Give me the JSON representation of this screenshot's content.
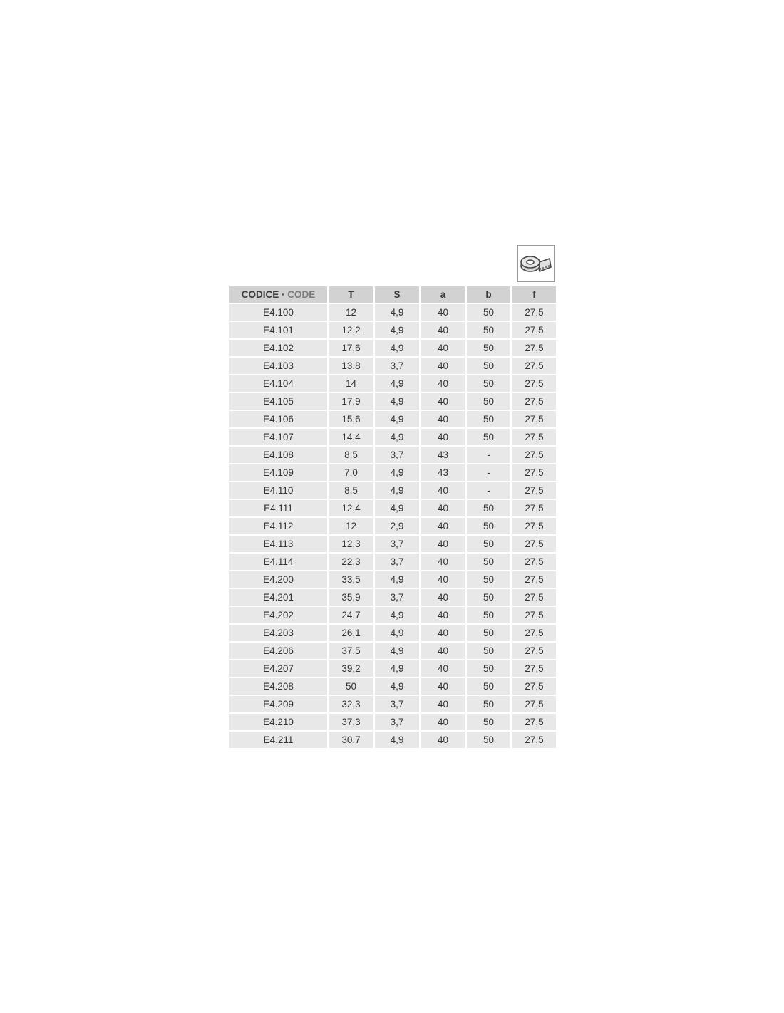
{
  "icon": "measuring-tape-icon",
  "colors": {
    "header_bg": "#d2d2d2",
    "row_bg": "#e8e8e8",
    "code_en": "#7a7a7a"
  },
  "table": {
    "header": {
      "code_it": "CODICE",
      "separator": " · ",
      "code_en": "CODE",
      "columns": [
        "T",
        "S",
        "a",
        "b",
        "f"
      ]
    },
    "rows": [
      [
        "E4.100",
        "12",
        "4,9",
        "40",
        "50",
        "27,5"
      ],
      [
        "E4.101",
        "12,2",
        "4,9",
        "40",
        "50",
        "27,5"
      ],
      [
        "E4.102",
        "17,6",
        "4,9",
        "40",
        "50",
        "27,5"
      ],
      [
        "E4.103",
        "13,8",
        "3,7",
        "40",
        "50",
        "27,5"
      ],
      [
        "E4.104",
        "14",
        "4,9",
        "40",
        "50",
        "27,5"
      ],
      [
        "E4.105",
        "17,9",
        "4,9",
        "40",
        "50",
        "27,5"
      ],
      [
        "E4.106",
        "15,6",
        "4,9",
        "40",
        "50",
        "27,5"
      ],
      [
        "E4.107",
        "14,4",
        "4,9",
        "40",
        "50",
        "27,5"
      ],
      [
        "E4.108",
        "8,5",
        "3,7",
        "43",
        "-",
        "27,5"
      ],
      [
        "E4.109",
        "7,0",
        "4,9",
        "43",
        "-",
        "27,5"
      ],
      [
        "E4.110",
        "8,5",
        "4,9",
        "40",
        "-",
        "27,5"
      ],
      [
        "E4.111",
        "12,4",
        "4,9",
        "40",
        "50",
        "27,5"
      ],
      [
        "E4.112",
        "12",
        "2,9",
        "40",
        "50",
        "27,5"
      ],
      [
        "E4.113",
        "12,3",
        "3,7",
        "40",
        "50",
        "27,5"
      ],
      [
        "E4.114",
        "22,3",
        "3,7",
        "40",
        "50",
        "27,5"
      ],
      [
        "E4.200",
        "33,5",
        "4,9",
        "40",
        "50",
        "27,5"
      ],
      [
        "E4.201",
        "35,9",
        "3,7",
        "40",
        "50",
        "27,5"
      ],
      [
        "E4.202",
        "24,7",
        "4,9",
        "40",
        "50",
        "27,5"
      ],
      [
        "E4.203",
        "26,1",
        "4,9",
        "40",
        "50",
        "27,5"
      ],
      [
        "E4.206",
        "37,5",
        "4,9",
        "40",
        "50",
        "27,5"
      ],
      [
        "E4.207",
        "39,2",
        "4,9",
        "40",
        "50",
        "27,5"
      ],
      [
        "E4.208",
        "50",
        "4,9",
        "40",
        "50",
        "27,5"
      ],
      [
        "E4.209",
        "32,3",
        "3,7",
        "40",
        "50",
        "27,5"
      ],
      [
        "E4.210",
        "37,3",
        "3,7",
        "40",
        "50",
        "27,5"
      ],
      [
        "E4.211",
        "30,7",
        "4,9",
        "40",
        "50",
        "27,5"
      ]
    ]
  }
}
